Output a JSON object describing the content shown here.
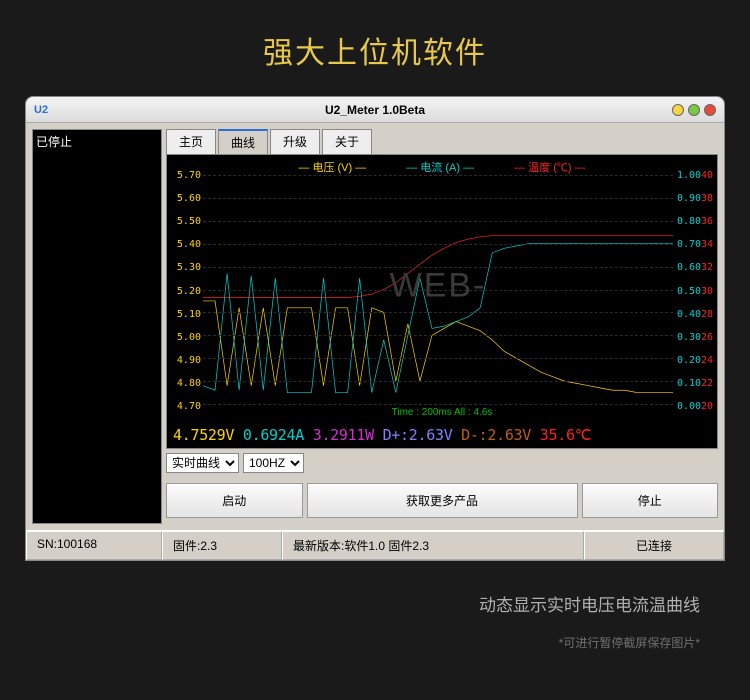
{
  "page": {
    "heading": "强大上位机软件",
    "footer": "动态显示实时电压电流温曲线",
    "footer_sub": "*可进行暂停截屏保存图片*"
  },
  "window": {
    "app_id": "U2",
    "title": "U2_Meter 1.0Beta",
    "button_colors": [
      "#f4d443",
      "#7ac943",
      "#e84b3c"
    ]
  },
  "sidebar": {
    "status": "已停止"
  },
  "tabs": {
    "items": [
      "主页",
      "曲线",
      "升级",
      "关于"
    ],
    "active_index": 1
  },
  "chart": {
    "bg": "#000000",
    "grid_color": "#2a2a2a",
    "legend": {
      "voltage": {
        "label": "电压 (V)",
        "color": "#ffd400"
      },
      "current": {
        "label": "电流 (A)",
        "color": "#00d0d0"
      },
      "temperature": {
        "label": "温度 (℃)",
        "color": "#ff2020"
      }
    },
    "y_left": {
      "ticks": [
        "5.70",
        "5.60",
        "5.50",
        "5.40",
        "5.30",
        "5.20",
        "5.10",
        "5.00",
        "4.90",
        "4.80",
        "4.70"
      ],
      "min": 4.7,
      "max": 5.7,
      "color": "#ffd400"
    },
    "y_right1": {
      "ticks": [
        "1.00",
        "0.90",
        "0.80",
        "0.70",
        "0.60",
        "0.50",
        "0.40",
        "0.30",
        "0.20",
        "0.10",
        "0.00"
      ],
      "min": 0.0,
      "max": 1.0,
      "color": "#00d0d0"
    },
    "y_right2": {
      "ticks": [
        "40",
        "38",
        "36",
        "34",
        "32",
        "30",
        "28",
        "26",
        "24",
        "22",
        "20"
      ],
      "min": 20,
      "max": 40,
      "color": "#ff2020"
    },
    "time_label": "Time : 200ms All : 4.6s",
    "watermark": "WEB-",
    "series": {
      "voltage": {
        "color": "#ffd400",
        "points": [
          5.15,
          5.15,
          4.78,
          5.12,
          4.78,
          5.12,
          4.78,
          5.12,
          5.12,
          5.12,
          4.78,
          5.12,
          5.12,
          4.78,
          5.12,
          5.1,
          4.8,
          5.05,
          4.8,
          5.0,
          5.03,
          5.06,
          5.04,
          5.02,
          4.98,
          4.93,
          4.9,
          4.87,
          4.84,
          4.82,
          4.8,
          4.79,
          4.78,
          4.77,
          4.76,
          4.76,
          4.75,
          4.75,
          4.75,
          4.75
        ]
      },
      "current": {
        "color": "#00d0d0",
        "points": [
          0.08,
          0.06,
          0.57,
          0.06,
          0.56,
          0.06,
          0.55,
          0.05,
          0.05,
          0.05,
          0.55,
          0.05,
          0.05,
          0.55,
          0.05,
          0.28,
          0.05,
          0.3,
          0.55,
          0.33,
          0.34,
          0.36,
          0.38,
          0.42,
          0.66,
          0.68,
          0.69,
          0.7,
          0.7,
          0.7,
          0.7,
          0.7,
          0.7,
          0.7,
          0.7,
          0.7,
          0.7,
          0.7,
          0.7,
          0.7
        ]
      },
      "temperature": {
        "color": "#ff2020",
        "points": [
          29.3,
          29.3,
          29.3,
          29.3,
          29.3,
          29.3,
          29.3,
          29.3,
          29.3,
          29.3,
          29.3,
          29.3,
          29.3,
          29.4,
          29.6,
          30.0,
          30.6,
          31.4,
          32.2,
          33.0,
          33.6,
          34.1,
          34.4,
          34.6,
          34.7,
          34.7,
          34.7,
          34.7,
          34.7,
          34.7,
          34.7,
          34.7,
          34.7,
          34.7,
          34.7,
          34.7,
          34.7,
          34.7,
          34.7,
          34.7
        ]
      }
    }
  },
  "readings": {
    "voltage": {
      "text": "4.7529V",
      "color": "#ffd400"
    },
    "current": {
      "text": "0.6924A",
      "color": "#00d0d0"
    },
    "power": {
      "text": "3.2911W",
      "color": "#d030d0"
    },
    "dplus": {
      "text": "D+:2.63V",
      "color": "#8080ff"
    },
    "dminus": {
      "text": "D-:2.63V",
      "color": "#c06000"
    },
    "temp": {
      "text": "35.6℃",
      "color": "#ff2020"
    }
  },
  "controls": {
    "mode_select": {
      "selected": "实时曲线"
    },
    "rate_select": {
      "selected": "100HZ"
    }
  },
  "buttons": {
    "start": "启动",
    "more": "获取更多产品",
    "stop": "停止"
  },
  "statusbar": {
    "sn": "SN:100168",
    "firmware": "固件:2.3",
    "version": "最新版本:软件1.0 固件2.3",
    "connection": "已连接"
  }
}
